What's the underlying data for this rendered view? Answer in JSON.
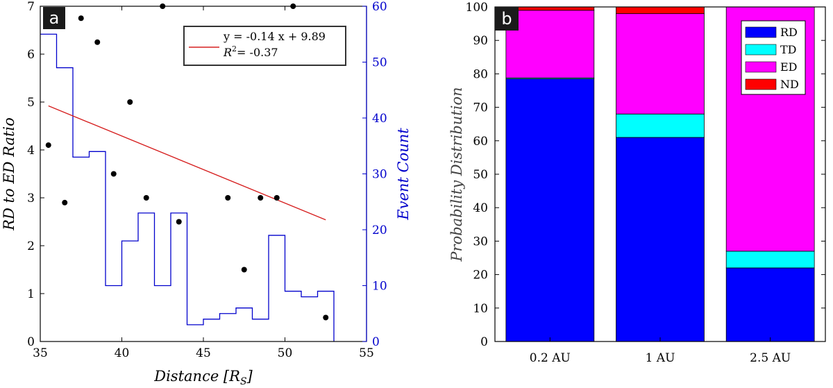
{
  "chart_data": [
    {
      "panel": "a",
      "type": "scatter",
      "xlabel": "Distance [R",
      "xlabel_sub": "S",
      "xlabel_end": "]",
      "ylabel": "RD to ED Ratio",
      "y2label": "Event Count",
      "xlim": [
        35,
        55
      ],
      "ylim": [
        0,
        7
      ],
      "y2lim": [
        0,
        60
      ],
      "xticks": [
        35,
        40,
        45,
        50,
        55
      ],
      "yticks": [
        0,
        1,
        2,
        3,
        4,
        5,
        6,
        7
      ],
      "y2ticks": [
        0,
        10,
        20,
        30,
        40,
        50,
        60
      ],
      "grid": false,
      "colors": {
        "points": "#000000",
        "fit": "#d62020",
        "histogram": "#0000cc",
        "axis2": "#0000cc"
      },
      "points": [
        [
          35.5,
          4.1
        ],
        [
          36.5,
          2.9
        ],
        [
          37.5,
          6.75
        ],
        [
          38.5,
          6.25
        ],
        [
          39.5,
          3.5
        ],
        [
          40.5,
          5.0
        ],
        [
          41.5,
          3.0
        ],
        [
          42.5,
          7.0
        ],
        [
          43.5,
          2.5
        ],
        [
          46.5,
          3.0
        ],
        [
          47.5,
          1.5
        ],
        [
          48.5,
          3.0
        ],
        [
          49.5,
          3.0
        ],
        [
          50.5,
          7.0
        ],
        [
          52.5,
          0.5
        ]
      ],
      "fit": {
        "x_range": [
          35.5,
          52.5
        ],
        "slope": -0.14,
        "intercept": 9.89
      },
      "legend": {
        "equation": "y = -0.14 x + 9.89",
        "r2_label": "R",
        "r2_sup": "2",
        "r2_value": "= -0.37",
        "position": "top-right"
      },
      "histogram": {
        "edges": [
          35,
          36,
          37,
          38,
          39,
          40,
          41,
          42,
          43,
          44,
          45,
          46,
          47,
          48,
          49,
          50,
          51,
          52,
          53
        ],
        "counts": [
          55,
          49,
          33,
          34,
          10,
          18,
          23,
          10,
          23,
          3,
          4,
          5,
          6,
          4,
          19,
          9,
          8,
          9
        ]
      }
    },
    {
      "panel": "b",
      "type": "bar",
      "stacked": true,
      "categories": [
        "0.2 AU",
        "1 AU",
        "2.5 AU"
      ],
      "series": [
        {
          "name": "RD",
          "color": "#0000ff",
          "values": [
            78.5,
            61,
            22
          ]
        },
        {
          "name": "TD",
          "color": "#00ffff",
          "values": [
            0.3,
            7,
            5
          ]
        },
        {
          "name": "ED",
          "color": "#ff00ff",
          "values": [
            20.2,
            30,
            73
          ]
        },
        {
          "name": "ND",
          "color": "#ff0000",
          "values": [
            1,
            2,
            0
          ]
        }
      ],
      "ylabel": "Probability Distribution",
      "ylim": [
        0,
        100
      ],
      "yticks": [
        0,
        10,
        20,
        30,
        40,
        50,
        60,
        70,
        80,
        90,
        100
      ],
      "grid": false,
      "legend": {
        "position": "top-right"
      }
    }
  ]
}
